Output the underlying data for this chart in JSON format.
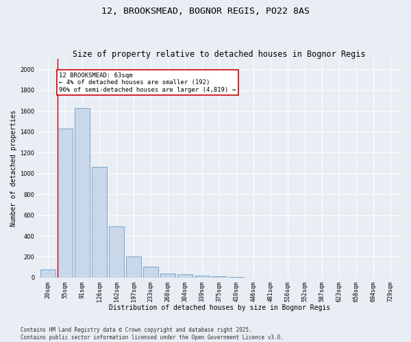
{
  "title": "12, BROOKSMEAD, BOGNOR REGIS, PO22 8AS",
  "subtitle": "Size of property relative to detached houses in Bognor Regis",
  "xlabel": "Distribution of detached houses by size in Bognor Regis",
  "ylabel": "Number of detached properties",
  "categories": [
    "20sqm",
    "55sqm",
    "91sqm",
    "126sqm",
    "162sqm",
    "197sqm",
    "233sqm",
    "268sqm",
    "304sqm",
    "339sqm",
    "375sqm",
    "410sqm",
    "446sqm",
    "481sqm",
    "516sqm",
    "552sqm",
    "587sqm",
    "623sqm",
    "658sqm",
    "694sqm",
    "729sqm"
  ],
  "values": [
    80,
    1430,
    1630,
    1060,
    490,
    205,
    105,
    42,
    30,
    18,
    10,
    5,
    0,
    0,
    0,
    0,
    0,
    0,
    0,
    0,
    0
  ],
  "bar_color": "#c8d8e8",
  "bar_edge_color": "#6699cc",
  "highlight_bar_index": 1,
  "annotation_text": "12 BROOKSMEAD: 63sqm\n← 4% of detached houses are smaller (192)\n96% of semi-detached houses are larger (4,819) →",
  "annotation_box_color": "#ffffff",
  "annotation_border_color": "#cc0000",
  "ylim": [
    0,
    2100
  ],
  "yticks": [
    0,
    200,
    400,
    600,
    800,
    1000,
    1200,
    1400,
    1600,
    1800,
    2000
  ],
  "background_color": "#e8eef4",
  "grid_color": "#ffffff",
  "footer_text": "Contains HM Land Registry data © Crown copyright and database right 2025.\nContains public sector information licensed under the Open Government Licence v3.0.",
  "title_fontsize": 9.5,
  "subtitle_fontsize": 8.5,
  "axis_label_fontsize": 7,
  "tick_fontsize": 6,
  "annotation_fontsize": 6.5,
  "footer_fontsize": 5.5
}
